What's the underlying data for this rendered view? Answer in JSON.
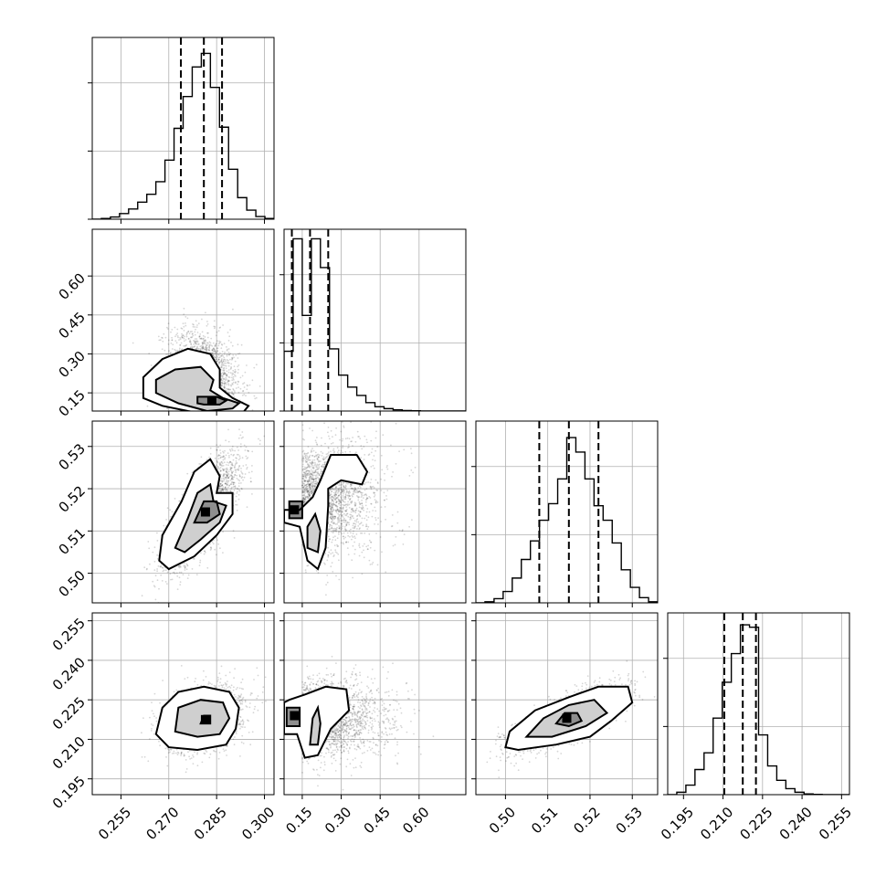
{
  "chart_data": {
    "type": "corner",
    "parameters": [
      {
        "range": [
          0.246,
          0.303
        ],
        "ticks": [
          0.255,
          0.27,
          0.285,
          0.3
        ],
        "tick_labels": [
          "0.255",
          "0.270",
          "0.285",
          "0.300"
        ],
        "quantiles": [
          0.2738,
          0.281,
          0.2867
        ]
      },
      {
        "range": [
          0.08,
          0.78
        ],
        "ticks": [
          0.15,
          0.3,
          0.45,
          0.6
        ],
        "tick_labels": [
          "0.15",
          "0.30",
          "0.45",
          "0.60"
        ],
        "quantiles": [
          0.11,
          0.18,
          0.25
        ]
      },
      {
        "range": [
          0.493,
          0.536
        ],
        "ticks": [
          0.5,
          0.51,
          0.52,
          0.53
        ],
        "tick_labels": [
          "0.50",
          "0.51",
          "0.52",
          "0.53"
        ],
        "quantiles": [
          0.508,
          0.515,
          0.522
        ]
      },
      {
        "range": [
          0.189,
          0.258
        ],
        "ticks": [
          0.195,
          0.21,
          0.225,
          0.24,
          0.255
        ],
        "tick_labels": [
          "0.195",
          "0.210",
          "0.225",
          "0.240",
          "0.255"
        ],
        "quantiles": [
          0.2105,
          0.2175,
          0.2225
        ]
      }
    ],
    "histograms": [
      {
        "edges": [
          0.246,
          0.24885,
          0.2517,
          0.25455,
          0.2574,
          0.26025,
          0.2631,
          0.26595,
          0.2688,
          0.27165,
          0.2745,
          0.27735,
          0.2802,
          0.28305,
          0.2859,
          0.28875,
          0.2916,
          0.29445,
          0.2973,
          0.30015,
          0.303
        ],
        "counts": [
          0,
          3,
          10,
          25,
          45,
          75,
          110,
          165,
          260,
          400,
          540,
          670,
          730,
          580,
          405,
          220,
          95,
          40,
          12,
          3
        ]
      },
      {
        "edges": [
          0.08,
          0.115,
          0.15,
          0.185,
          0.22,
          0.255,
          0.29,
          0.325,
          0.36,
          0.395,
          0.43,
          0.465,
          0.5,
          0.535,
          0.57,
          0.605,
          0.64,
          0.675,
          0.71,
          0.745,
          0.78
        ],
        "counts": [
          250,
          720,
          400,
          720,
          600,
          260,
          150,
          100,
          65,
          35,
          18,
          10,
          5,
          2,
          1,
          0,
          0,
          0,
          0,
          0
        ]
      },
      {
        "edges": [
          0.493,
          0.49515,
          0.4973,
          0.49945,
          0.5016,
          0.50375,
          0.5059,
          0.50805,
          0.5102,
          0.51235,
          0.5145,
          0.51665,
          0.5188,
          0.52095,
          0.5231,
          0.52525,
          0.5274,
          0.52955,
          0.5317,
          0.53385,
          0.536
        ],
        "counts": [
          0,
          5,
          20,
          55,
          120,
          210,
          300,
          400,
          480,
          600,
          800,
          730,
          600,
          470,
          400,
          290,
          160,
          75,
          25,
          5
        ]
      },
      {
        "edges": [
          0.189,
          0.19245,
          0.1959,
          0.19935,
          0.2028,
          0.20625,
          0.2097,
          0.21315,
          0.2166,
          0.22005,
          0.2235,
          0.22695,
          0.2304,
          0.23385,
          0.2373,
          0.24075,
          0.2442,
          0.24765,
          0.2511,
          0.25455,
          0.258
        ],
        "counts": [
          0,
          10,
          40,
          105,
          175,
          320,
          470,
          590,
          710,
          700,
          250,
          120,
          60,
          25,
          10,
          3,
          1,
          0,
          0,
          0
        ]
      }
    ],
    "hist_ymax": [
      800,
      760,
      880,
      760
    ],
    "pairs": [
      {
        "x": 0,
        "y": 1,
        "mean": [
          0.281,
          0.21
        ],
        "sd": [
          0.0055,
          0.09
        ],
        "rho": -0.25,
        "peak": [
          0.2835,
          0.12
        ],
        "contours": [
          [
            [
              0.262,
              0.13
            ],
            [
              0.262,
              0.21
            ],
            [
              0.268,
              0.28
            ],
            [
              0.276,
              0.32
            ],
            [
              0.283,
              0.3
            ],
            [
              0.286,
              0.24
            ],
            [
              0.286,
              0.17
            ],
            [
              0.29,
              0.13
            ],
            [
              0.295,
              0.1
            ],
            [
              0.293,
              0.07
            ],
            [
              0.286,
              0.06
            ],
            [
              0.276,
              0.08
            ],
            [
              0.268,
              0.1
            ]
          ],
          [
            [
              0.266,
              0.15
            ],
            [
              0.266,
              0.2
            ],
            [
              0.272,
              0.24
            ],
            [
              0.28,
              0.25
            ],
            [
              0.284,
              0.2
            ],
            [
              0.283,
              0.16
            ],
            [
              0.287,
              0.13
            ],
            [
              0.292,
              0.11
            ],
            [
              0.29,
              0.09
            ],
            [
              0.282,
              0.08
            ],
            [
              0.273,
              0.11
            ]
          ],
          [
            [
              0.279,
              0.11
            ],
            [
              0.279,
              0.135
            ],
            [
              0.285,
              0.135
            ],
            [
              0.288,
              0.12
            ],
            [
              0.286,
              0.105
            ],
            [
              0.281,
              0.105
            ]
          ]
        ]
      },
      {
        "x": 0,
        "y": 2,
        "mean": [
          0.281,
          0.515
        ],
        "sd": [
          0.0058,
          0.0065
        ],
        "rho": 0.75,
        "peak": [
          0.2815,
          0.5145
        ],
        "contours": [
          [
            [
              0.267,
              0.503
            ],
            [
              0.268,
              0.509
            ],
            [
              0.274,
              0.517
            ],
            [
              0.278,
              0.524
            ],
            [
              0.283,
              0.527
            ],
            [
              0.286,
              0.523
            ],
            [
              0.285,
              0.519
            ],
            [
              0.29,
              0.519
            ],
            [
              0.29,
              0.514
            ],
            [
              0.285,
              0.509
            ],
            [
              0.278,
              0.504
            ],
            [
              0.27,
              0.501
            ]
          ],
          [
            [
              0.272,
              0.506
            ],
            [
              0.276,
              0.513
            ],
            [
              0.279,
              0.519
            ],
            [
              0.283,
              0.521
            ],
            [
              0.284,
              0.517
            ],
            [
              0.288,
              0.516
            ],
            [
              0.286,
              0.512
            ],
            [
              0.28,
              0.508
            ],
            [
              0.275,
              0.505
            ]
          ],
          [
            [
              0.278,
              0.512
            ],
            [
              0.281,
              0.517
            ],
            [
              0.285,
              0.517
            ],
            [
              0.286,
              0.514
            ],
            [
              0.282,
              0.512
            ]
          ]
        ]
      },
      {
        "x": 1,
        "y": 2,
        "mean": [
          0.25,
          0.518
        ],
        "sd": [
          0.11,
          0.0065
        ],
        "rho": 0.35,
        "peak": [
          0.12,
          0.515
        ],
        "contours": [
          [
            [
              0.08,
              0.512
            ],
            [
              0.14,
              0.511
            ],
            [
              0.17,
              0.503
            ],
            [
              0.21,
              0.501
            ],
            [
              0.24,
              0.506
            ],
            [
              0.25,
              0.516
            ],
            [
              0.25,
              0.52
            ],
            [
              0.3,
              0.522
            ],
            [
              0.38,
              0.521
            ],
            [
              0.4,
              0.524
            ],
            [
              0.36,
              0.528
            ],
            [
              0.26,
              0.528
            ],
            [
              0.22,
              0.522
            ],
            [
              0.19,
              0.518
            ],
            [
              0.14,
              0.515
            ],
            [
              0.08,
              0.515
            ]
          ],
          [
            [
              0.17,
              0.506
            ],
            [
              0.21,
              0.505
            ],
            [
              0.22,
              0.51
            ],
            [
              0.2,
              0.514
            ],
            [
              0.17,
              0.511
            ]
          ],
          [
            [
              0.1,
              0.513
            ],
            [
              0.15,
              0.513
            ],
            [
              0.15,
              0.517
            ],
            [
              0.1,
              0.517
            ]
          ]
        ]
      },
      {
        "x": 0,
        "y": 3,
        "mean": [
          0.281,
          0.218
        ],
        "sd": [
          0.006,
          0.006
        ],
        "rho": 0.3,
        "peak": [
          0.2815,
          0.2175
        ],
        "contours": [
          [
            [
              0.266,
              0.212
            ],
            [
              0.268,
              0.222
            ],
            [
              0.273,
              0.228
            ],
            [
              0.281,
              0.23
            ],
            [
              0.289,
              0.228
            ],
            [
              0.292,
              0.222
            ],
            [
              0.291,
              0.214
            ],
            [
              0.288,
              0.208
            ],
            [
              0.279,
              0.206
            ],
            [
              0.27,
              0.207
            ]
          ],
          [
            [
              0.272,
              0.213
            ],
            [
              0.273,
              0.222
            ],
            [
              0.28,
              0.225
            ],
            [
              0.287,
              0.224
            ],
            [
              0.289,
              0.218
            ],
            [
              0.286,
              0.212
            ],
            [
              0.279,
              0.211
            ]
          ],
          [
            [
              0.28,
              0.216
            ],
            [
              0.281,
              0.219
            ],
            [
              0.283,
              0.219
            ],
            [
              0.283,
              0.216
            ]
          ]
        ]
      },
      {
        "x": 1,
        "y": 3,
        "mean": [
          0.25,
          0.218
        ],
        "sd": [
          0.12,
          0.007
        ],
        "rho": 0.3,
        "peak": [
          0.12,
          0.219
        ],
        "contours": [
          [
            [
              0.08,
              0.212
            ],
            [
              0.13,
              0.212
            ],
            [
              0.16,
              0.203
            ],
            [
              0.21,
              0.204
            ],
            [
              0.26,
              0.214
            ],
            [
              0.33,
              0.221
            ],
            [
              0.32,
              0.229
            ],
            [
              0.24,
              0.23
            ],
            [
              0.16,
              0.227
            ],
            [
              0.1,
              0.225
            ],
            [
              0.08,
              0.224
            ]
          ],
          [
            [
              0.18,
              0.208
            ],
            [
              0.21,
              0.208
            ],
            [
              0.22,
              0.216
            ],
            [
              0.21,
              0.222
            ],
            [
              0.19,
              0.218
            ]
          ],
          [
            [
              0.09,
              0.215
            ],
            [
              0.14,
              0.215
            ],
            [
              0.14,
              0.222
            ],
            [
              0.09,
              0.222
            ]
          ]
        ]
      },
      {
        "x": 2,
        "y": 3,
        "mean": [
          0.515,
          0.218
        ],
        "sd": [
          0.0065,
          0.006
        ],
        "rho": 0.75,
        "peak": [
          0.5145,
          0.218
        ],
        "contours": [
          [
            [
              0.5,
              0.207
            ],
            [
              0.501,
              0.213
            ],
            [
              0.507,
              0.221
            ],
            [
              0.515,
              0.226
            ],
            [
              0.522,
              0.23
            ],
            [
              0.529,
              0.23
            ],
            [
              0.53,
              0.224
            ],
            [
              0.525,
              0.217
            ],
            [
              0.52,
              0.211
            ],
            [
              0.512,
              0.208
            ],
            [
              0.503,
              0.206
            ]
          ],
          [
            [
              0.505,
              0.211
            ],
            [
              0.509,
              0.218
            ],
            [
              0.515,
              0.223
            ],
            [
              0.521,
              0.225
            ],
            [
              0.524,
              0.22
            ],
            [
              0.519,
              0.215
            ],
            [
              0.511,
              0.211
            ]
          ],
          [
            [
              0.512,
              0.216
            ],
            [
              0.514,
              0.22
            ],
            [
              0.517,
              0.22
            ],
            [
              0.518,
              0.217
            ],
            [
              0.515,
              0.215
            ]
          ]
        ]
      }
    ]
  }
}
